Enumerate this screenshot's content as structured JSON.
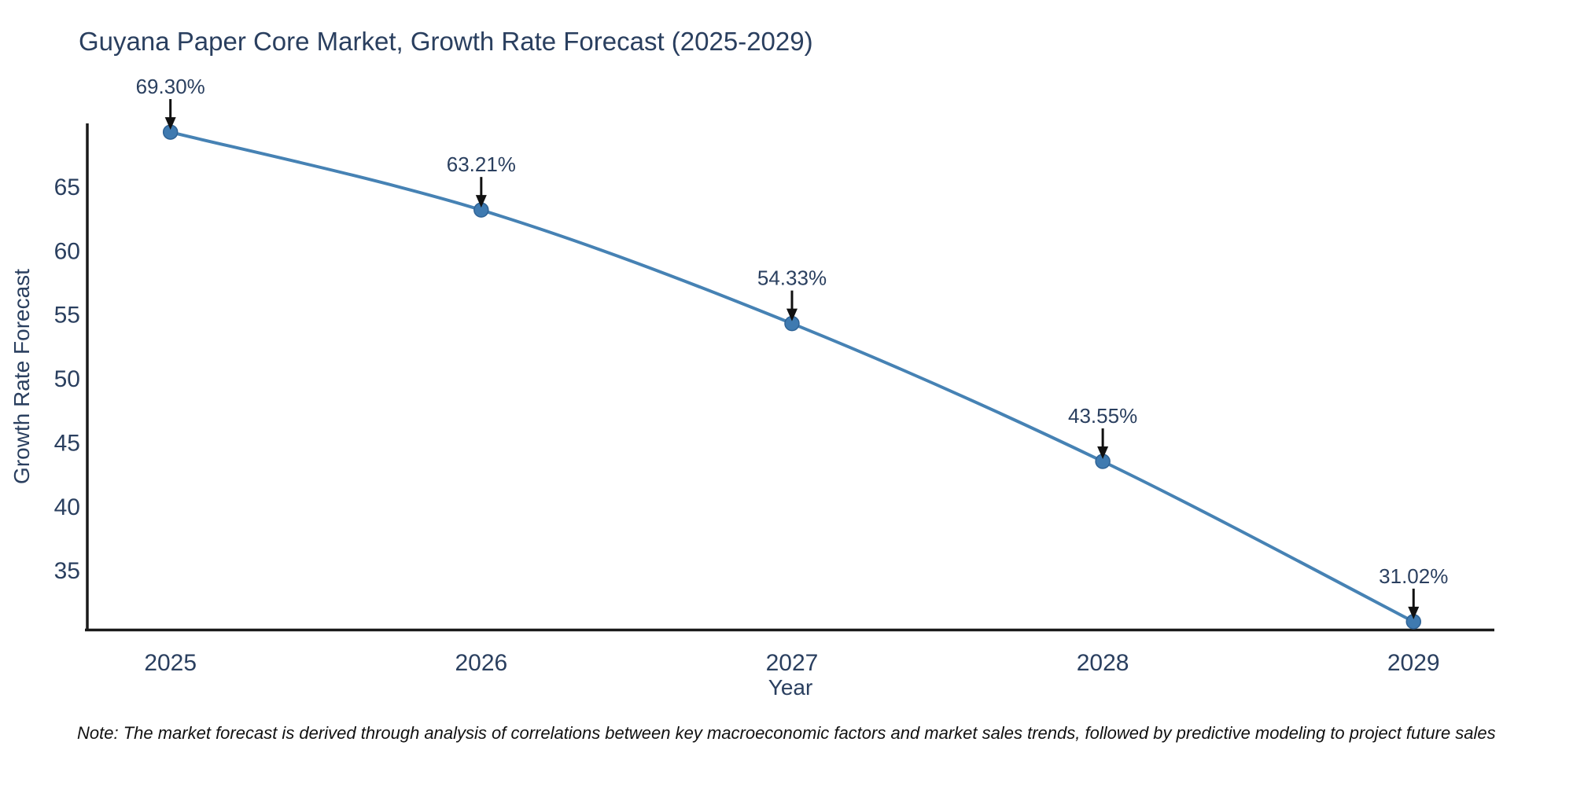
{
  "chart_data": {
    "type": "line",
    "title": "Guyana Paper Core Market, Growth Rate Forecast (2025-2029)",
    "xlabel": "Year",
    "ylabel": "Growth Rate Forecast",
    "categories": [
      2025,
      2026,
      2027,
      2028,
      2029
    ],
    "x_tick_labels": [
      "2025",
      "2026",
      "2027",
      "2028",
      "2029"
    ],
    "series": [
      {
        "name": "Growth Rate Forecast",
        "values": [
          69.3,
          63.21,
          54.33,
          43.55,
          31.02
        ],
        "point_labels": [
          "69.30%",
          "63.21%",
          "54.33%",
          "43.55%",
          "31.02%"
        ]
      }
    ],
    "y_ticks": [
      35,
      40,
      45,
      50,
      55,
      60,
      65
    ],
    "xlim": [
      2024.73,
      2029.26
    ],
    "ylim": [
      30.4,
      69.98
    ],
    "grid": false,
    "legend_position": "none",
    "line_shape": "spline",
    "annotations_have_arrows": true,
    "colors": {
      "line": "#4682b4",
      "marker_fill": "#3f7ab0",
      "marker_edge": "#2f6396",
      "axis_line": "#1a1a1a",
      "tick_text": "#2a3f5f",
      "annotation_text": "#2a3f5f",
      "arrow": "#111111",
      "title_text": "#2a3f5f",
      "background": "#ffffff"
    }
  },
  "note": {
    "text": "Note: The market forecast is derived through analysis of correlations between key macroeconomic factors and market sales trends, followed by predictive modeling to project future sales"
  }
}
